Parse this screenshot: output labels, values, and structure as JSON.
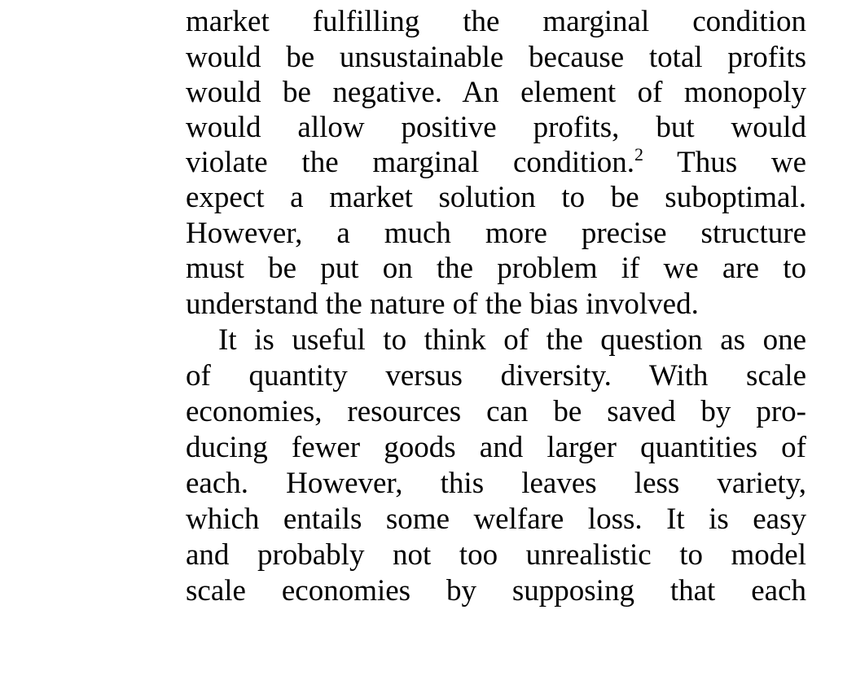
{
  "document": {
    "lines": [
      "market fulfilling the marginal condition",
      "would be unsustainable because total profits",
      "would be negative. An element of monopoly",
      "would allow positive profits, but would",
      "violate the marginal condition.",
      "understand the nature of the bias involved.",
      "It is useful to think of the question as one",
      "of quantity versus diversity. With scale",
      "economies, resources can be saved by pro-",
      "ducing fewer goods and larger quantities of",
      "each. However, this leaves less variety,",
      "which entails some welfare loss. It is easy",
      "and probably not too unrealistic to model",
      "scale economies by supposing that each"
    ],
    "line5_continuation": "Thus we",
    "line6": "expect a market solution to be suboptimal.",
    "line7": "However, a much more precise structure",
    "line8": "must be put on the problem if we are to",
    "footnote_marker": "2"
  }
}
